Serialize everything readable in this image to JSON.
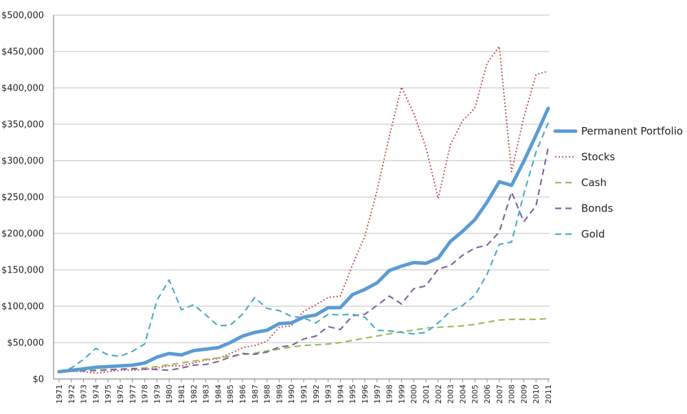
{
  "chart_data": {
    "type": "line",
    "title": "",
    "xlabel": "",
    "ylabel": "",
    "ylim": [
      0,
      500000
    ],
    "yticks": [
      0,
      50000,
      100000,
      150000,
      200000,
      250000,
      300000,
      350000,
      400000,
      450000,
      500000
    ],
    "ytick_labels": [
      "$0",
      "$50,000",
      "$100,000",
      "$150,000",
      "$200,000",
      "$250,000",
      "$300,000",
      "$350,000",
      "$400,000",
      "$450,000",
      "$500,000"
    ],
    "grid": "horizontal",
    "legend_position": "right",
    "x": [
      "1971",
      "1972",
      "1973",
      "1974",
      "1975",
      "1976",
      "1977",
      "1978",
      "1979",
      "1980",
      "1981",
      "1982",
      "1983",
      "1984",
      "1985",
      "1986",
      "1987",
      "1988",
      "1989",
      "1990",
      "1991",
      "1992",
      "1993",
      "1994",
      "1995",
      "1996",
      "1997",
      "1998",
      "1999",
      "2000",
      "2001",
      "2002",
      "2003",
      "2004",
      "2005",
      "2006",
      "2007",
      "2008",
      "2009",
      "2010",
      "2011"
    ],
    "series": [
      {
        "name": "Permanent Portfolio",
        "color": "#5b9bd5",
        "style": "solid-thick",
        "values": [
          10000,
          12000,
          14000,
          16000,
          17000,
          18000,
          19000,
          22000,
          30000,
          35000,
          33000,
          39000,
          41000,
          43000,
          50000,
          59000,
          64000,
          67000,
          76000,
          77000,
          85000,
          88000,
          98000,
          98000,
          116000,
          123000,
          132000,
          149000,
          155000,
          160000,
          159000,
          166000,
          189000,
          203000,
          219000,
          243000,
          271000,
          266000,
          299000,
          335000,
          372000
        ]
      },
      {
        "name": "Stocks",
        "color": "#c0504d",
        "style": "dotted",
        "values": [
          10000,
          11000,
          10000,
          8000,
          10000,
          12000,
          12000,
          13000,
          15000,
          18000,
          18000,
          22000,
          26000,
          28000,
          35000,
          43000,
          46000,
          52000,
          71000,
          73000,
          93000,
          102000,
          112000,
          114000,
          157000,
          196000,
          259000,
          333000,
          401000,
          365000,
          318000,
          248000,
          322000,
          355000,
          372000,
          434000,
          457000,
          285000,
          359000,
          418000,
          423000
        ]
      },
      {
        "name": "Cash",
        "color": "#9bbb59",
        "style": "dashed",
        "values": [
          10000,
          10500,
          11200,
          12100,
          12900,
          13600,
          14300,
          15300,
          17200,
          19500,
          22000,
          24500,
          27000,
          29000,
          31500,
          33500,
          35500,
          38500,
          41000,
          44000,
          46000,
          47000,
          48000,
          50000,
          53000,
          56000,
          59000,
          62000,
          65000,
          67000,
          70000,
          71000,
          72000,
          73000,
          75000,
          78000,
          81000,
          82000,
          82000,
          82000,
          83000
        ]
      },
      {
        "name": "Bonds",
        "color": "#8064a2",
        "style": "dashed",
        "values": [
          10000,
          11000,
          11500,
          11500,
          12500,
          13500,
          14000,
          13500,
          13000,
          12000,
          15000,
          19000,
          20000,
          24000,
          30000,
          35000,
          34000,
          37000,
          44000,
          46000,
          55000,
          59000,
          72000,
          68000,
          87000,
          89000,
          101000,
          114000,
          103000,
          124000,
          128000,
          151000,
          156000,
          170000,
          180000,
          184000,
          202000,
          257000,
          216000,
          238000,
          318000
        ]
      },
      {
        "name": "Gold",
        "color": "#4bacc6",
        "style": "dashed",
        "values": [
          10000,
          15000,
          27000,
          42000,
          33000,
          31000,
          38000,
          48000,
          108000,
          136000,
          95000,
          102000,
          88000,
          73000,
          74000,
          89000,
          112000,
          97000,
          94000,
          86000,
          84000,
          77000,
          89000,
          88000,
          89000,
          85000,
          67000,
          66000,
          64000,
          62000,
          64000,
          77000,
          93000,
          101000,
          115000,
          144000,
          185000,
          188000,
          254000,
          312000,
          352000
        ]
      }
    ]
  }
}
